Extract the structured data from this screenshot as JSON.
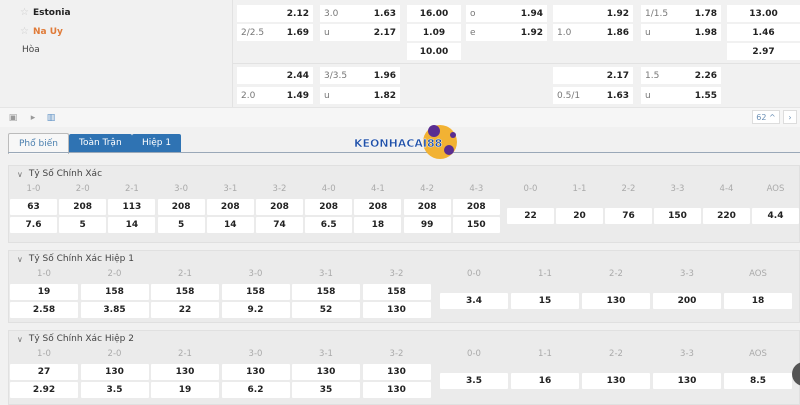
{
  "match": {
    "teams": [
      {
        "name": "Estonia",
        "color": "#222222",
        "starred": false
      },
      {
        "name": "Na Uy",
        "color": "#e07b39",
        "starred": false
      },
      {
        "name": "Hòa",
        "color": "#444444"
      }
    ],
    "odds_rows": [
      [
        {
          "l": "",
          "o": "2.12"
        },
        {
          "l": "3.0",
          "o": "1.63"
        },
        {
          "o": "16.00"
        },
        {
          "l": "o",
          "o": "1.94"
        },
        {
          "l": "",
          "o": "1.92"
        },
        {
          "l": "1/1.5",
          "o": "1.78"
        },
        {
          "o": "13.00"
        }
      ],
      [
        {
          "l": "2/2.5",
          "o": "1.69"
        },
        {
          "l": "u",
          "o": "2.17"
        },
        {
          "o": "1.09"
        },
        {
          "l": "e",
          "o": "1.92"
        },
        {
          "l": "1.0",
          "o": "1.86"
        },
        {
          "l": "u",
          "o": "1.98"
        },
        {
          "o": "1.46"
        }
      ],
      [
        null,
        null,
        {
          "o": "10.00"
        },
        null,
        null,
        null,
        {
          "o": "2.97"
        }
      ],
      [
        {
          "l": "",
          "o": "2.44"
        },
        {
          "l": "3/3.5",
          "o": "1.96"
        },
        null,
        null,
        {
          "l": "",
          "o": "2.17"
        },
        {
          "l": "1.5",
          "o": "2.26"
        },
        null
      ],
      [
        {
          "l": "2.0",
          "o": "1.49"
        },
        {
          "l": "u",
          "o": "1.82"
        },
        null,
        null,
        {
          "l": "0.5/1",
          "o": "1.63"
        },
        {
          "l": "u",
          "o": "1.55"
        },
        null
      ]
    ]
  },
  "toolbar": {
    "icons": [
      "stats-board-icon",
      "play-icon",
      "bar-chart-icon"
    ],
    "count": "62",
    "count_icon": "chevron-up-icon",
    "next_icon": "chevron-right-icon"
  },
  "tabs": [
    {
      "label": "Phổ biến",
      "active": true
    },
    {
      "label": "Toàn Trận",
      "active": false
    },
    {
      "label": "Hiệp 1",
      "active": false
    }
  ],
  "logo_text": "KEONHACAI88",
  "markets": [
    {
      "title": "Tỷ Số Chính Xác",
      "scores": [
        "1-0",
        "2-0",
        "2-1",
        "3-0",
        "3-1",
        "3-2",
        "4-0",
        "4-1",
        "4-2",
        "4-3"
      ],
      "home": [
        "63",
        "208",
        "113",
        "208",
        "208",
        "208",
        "208",
        "208",
        "208",
        "208"
      ],
      "away": [
        "7.6",
        "5",
        "14",
        "5",
        "14",
        "74",
        "6.5",
        "18",
        "99",
        "150"
      ],
      "draws": [
        "0-0",
        "1-1",
        "2-2",
        "3-3",
        "4-4",
        "AOS"
      ],
      "draw_odds": [
        "22",
        "20",
        "76",
        "150",
        "220",
        "4.4"
      ]
    },
    {
      "title": "Tỷ Số Chính Xác Hiệp 1",
      "scores": [
        "1-0",
        "2-0",
        "2-1",
        "3-0",
        "3-1",
        "3-2"
      ],
      "home": [
        "19",
        "158",
        "158",
        "158",
        "158",
        "158"
      ],
      "away": [
        "2.58",
        "3.85",
        "22",
        "9.2",
        "52",
        "130"
      ],
      "draws": [
        "0-0",
        "1-1",
        "2-2",
        "3-3",
        "AOS"
      ],
      "draw_odds": [
        "3.4",
        "15",
        "130",
        "200",
        "18"
      ]
    },
    {
      "title": "Tỷ Số Chính Xác Hiệp 2",
      "scores": [
        "1-0",
        "2-0",
        "2-1",
        "3-0",
        "3-1",
        "3-2"
      ],
      "home": [
        "27",
        "130",
        "130",
        "130",
        "130",
        "130"
      ],
      "away": [
        "2.92",
        "3.5",
        "19",
        "6.2",
        "35",
        "130"
      ],
      "draws": [
        "0-0",
        "1-1",
        "2-2",
        "3-3",
        "AOS"
      ],
      "draw_odds": [
        "3.5",
        "16",
        "130",
        "130",
        "8.5"
      ]
    }
  ],
  "colors": {
    "accent": "#2f73b3",
    "home_team": "#e07b39"
  }
}
